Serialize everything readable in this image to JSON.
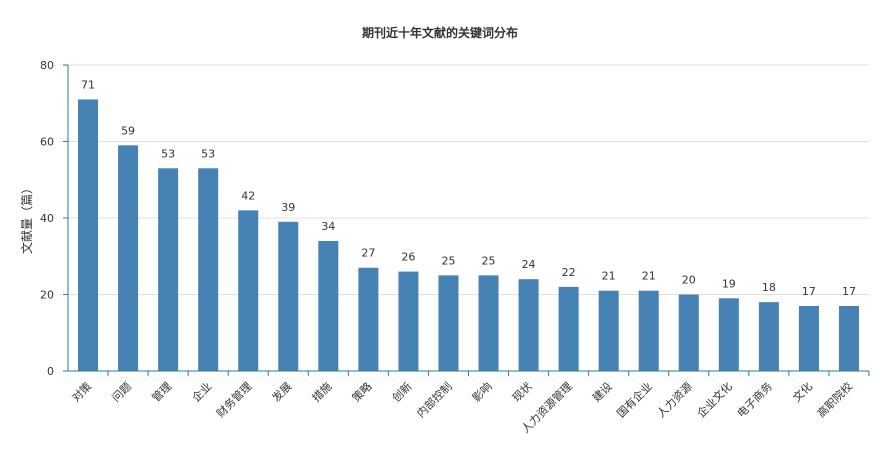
{
  "chart_data": {
    "type": "bar",
    "title": "期刊近十年文献的关键词分布",
    "xlabel": "",
    "ylabel": "文献量（篇）",
    "ylim": [
      0,
      80
    ],
    "yticks": [
      0,
      20,
      40,
      60,
      80
    ],
    "grid": true,
    "legend": "none",
    "bar_color": "#4682b4",
    "categories": [
      "对策",
      "问题",
      "管理",
      "企业",
      "财务管理",
      "发展",
      "措施",
      "策略",
      "创新",
      "内部控制",
      "影响",
      "现状",
      "人力资源管理",
      "建设",
      "国有企业",
      "人力资源",
      "企业文化",
      "电子商务",
      "文化",
      "高职院校"
    ],
    "values": [
      71,
      59,
      53,
      53,
      42,
      39,
      34,
      27,
      26,
      25,
      25,
      24,
      22,
      21,
      21,
      20,
      19,
      18,
      17,
      17
    ]
  }
}
